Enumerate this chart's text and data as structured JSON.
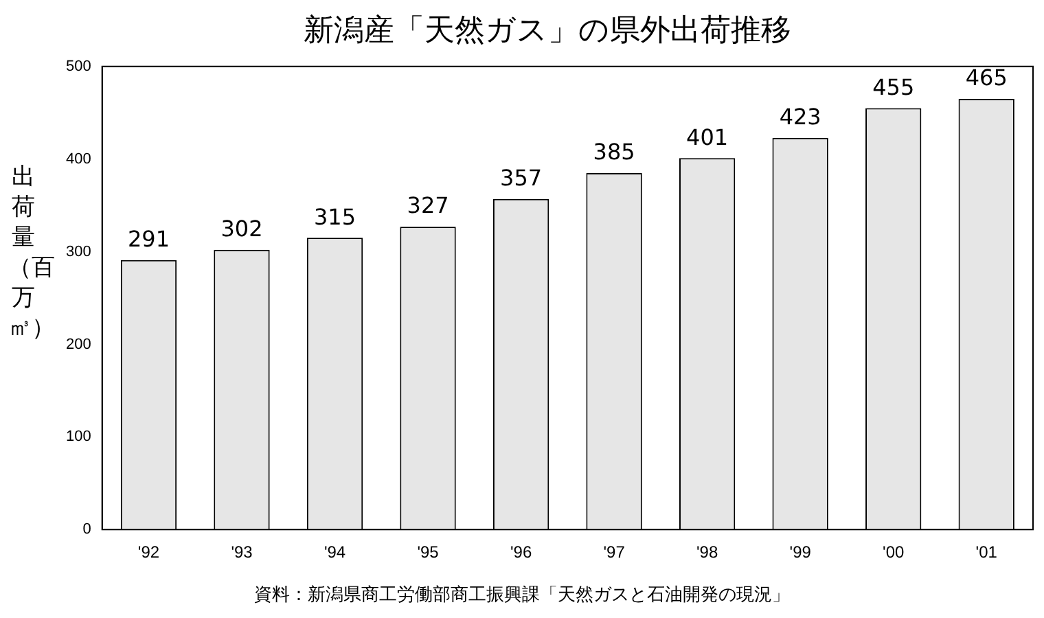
{
  "chart_data": {
    "type": "bar",
    "title": "新潟産「天然ガス」の県外出荷推移",
    "ylabel": "出荷量（百万㎥）",
    "categories": [
      "'92",
      "'93",
      "'94",
      "'95",
      "'96",
      "'97",
      "'98",
      "'99",
      "'00",
      "'01"
    ],
    "values": [
      291,
      302,
      315,
      327,
      357,
      385,
      401,
      423,
      455,
      465
    ],
    "color": "#e6e6e6",
    "ylim": [
      0,
      500
    ],
    "yticks": [
      0,
      100,
      200,
      300,
      400,
      500
    ],
    "grid": false,
    "legend": false,
    "data_labels": true,
    "annotations": [
      "資料：新潟県商工労働部商工振興課「天然ガスと石油開発の現況」"
    ]
  }
}
